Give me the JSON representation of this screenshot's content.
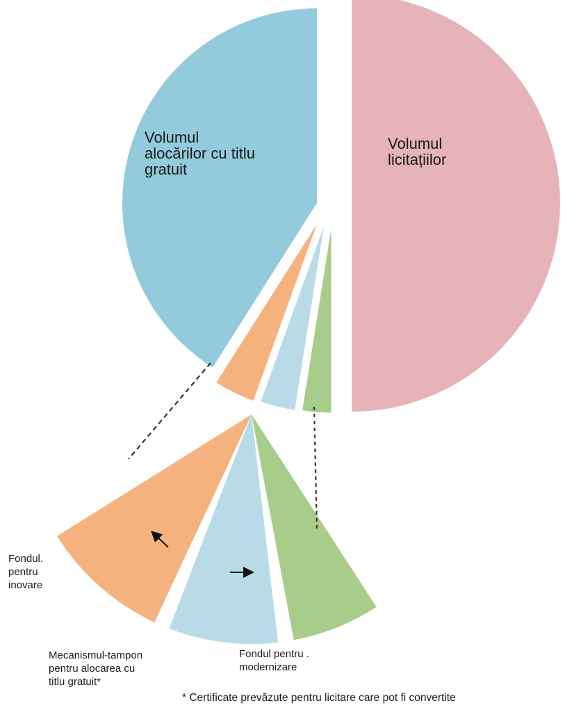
{
  "chart_data": {
    "type": "pie",
    "title": "",
    "slices": [
      {
        "key": "licitatii",
        "label_lines": [
          "Volumul",
          "licitațiilor"
        ],
        "value": 50.0,
        "color": "#e5b3b8"
      },
      {
        "key": "alocari",
        "label_lines": [
          "Volumul",
          "alocărilor  cu titlu",
          "gratuit"
        ],
        "value": 41.0,
        "color": "#93cbdc"
      },
      {
        "key": "inovare",
        "label_lines": [
          "Fondul.",
          "pentru",
          "inovare"
        ],
        "value": 3.5,
        "color": "#f5b27f"
      },
      {
        "key": "tampon",
        "label_lines": [
          "Mecanismul-tampon",
          "pentru alocarea cu",
          "titlu gratuit*"
        ],
        "value": 3.0,
        "color": "#b9dbe8"
      },
      {
        "key": "modernizare",
        "label_lines": [
          "Fondul pentru .",
          "modernizare"
        ],
        "value": 2.5,
        "color": "#a8cd8b"
      }
    ],
    "exploded_detail": [
      "inovare",
      "tampon",
      "modernizare"
    ],
    "footnote": "* Certificate prevăzute pentru licitare care pot fi convertite"
  }
}
